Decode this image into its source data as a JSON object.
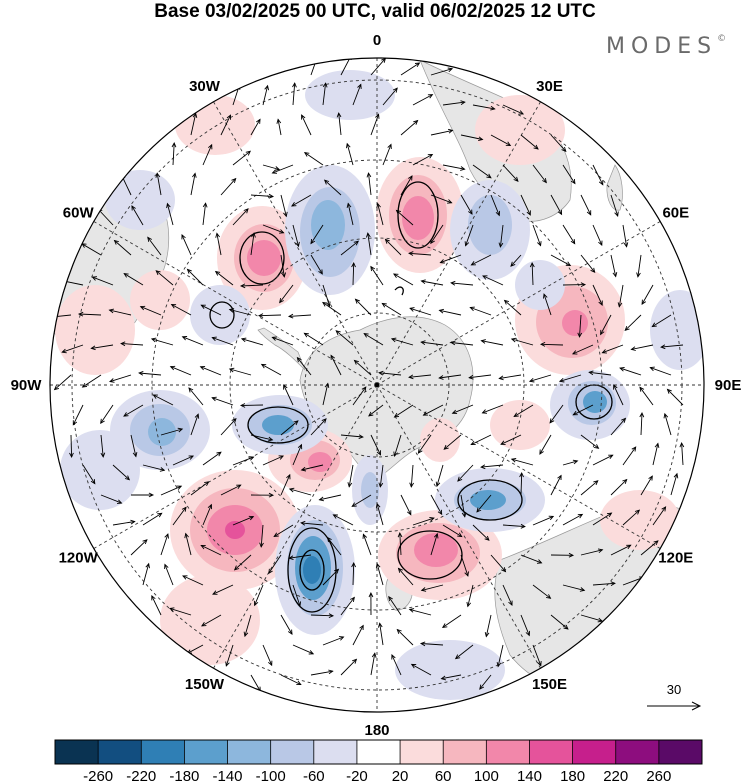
{
  "title": "Base 03/02/2025 00 UTC, valid 06/02/2025 12 UTC",
  "brand": "MODES",
  "brand_mark": "©",
  "meridian_labels": [
    {
      "text": "0",
      "lon": 0
    },
    {
      "text": "30E",
      "lon": 30
    },
    {
      "text": "60E",
      "lon": 60
    },
    {
      "text": "90E",
      "lon": 90
    },
    {
      "text": "120E",
      "lon": 120
    },
    {
      "text": "150E",
      "lon": 150
    },
    {
      "text": "180",
      "lon": 180
    },
    {
      "text": "150W",
      "lon": -150
    },
    {
      "text": "120W",
      "lon": -120
    },
    {
      "text": "90W",
      "lon": -90
    },
    {
      "text": "60W",
      "lon": -60
    },
    {
      "text": "30W",
      "lon": -30
    }
  ],
  "reference_vector": {
    "value": "30"
  },
  "colorbar": {
    "colors": [
      "#0a3352",
      "#124e80",
      "#2f7fb5",
      "#5c9fcd",
      "#8db7dd",
      "#b9c8e6",
      "#dcdef0",
      "#ffffff",
      "#fbdcdc",
      "#f6b7bf",
      "#f287aa",
      "#e5539b",
      "#c61f8c",
      "#8d0d7e",
      "#5a0a67"
    ],
    "labels": [
      "-260",
      "-220",
      "-180",
      "-140",
      "-100",
      "-60",
      "-20",
      "20",
      "60",
      "100",
      "140",
      "180",
      "220",
      "260"
    ]
  }
}
